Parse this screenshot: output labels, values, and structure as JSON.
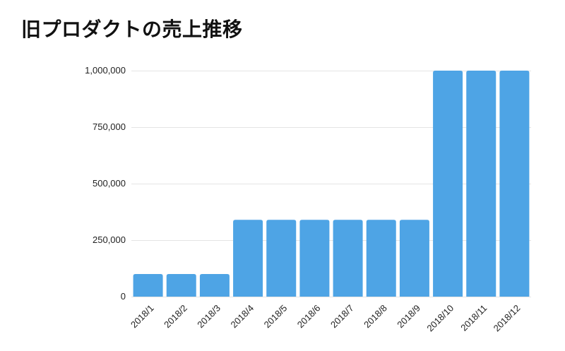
{
  "colors": {
    "bar": "#4ea4e5",
    "gridline": "#e4e4e4",
    "text": "#222222"
  },
  "chart_data": {
    "type": "bar",
    "title": "旧プロダクトの売上推移",
    "categories": [
      "2018/1",
      "2018/2",
      "2018/3",
      "2018/4",
      "2018/5",
      "2018/6",
      "2018/7",
      "2018/8",
      "2018/9",
      "2018/10",
      "2018/11",
      "2018/12"
    ],
    "values": [
      100000,
      100000,
      100000,
      340000,
      340000,
      340000,
      340000,
      340000,
      340000,
      1000000,
      1000000,
      1000000
    ],
    "ylim": [
      0,
      1000000
    ],
    "yticks": [
      0,
      250000,
      500000,
      750000,
      1000000
    ],
    "ytick_labels": [
      "0",
      "250,000",
      "500,000",
      "750,000",
      "1,000,000"
    ],
    "grid": true
  }
}
